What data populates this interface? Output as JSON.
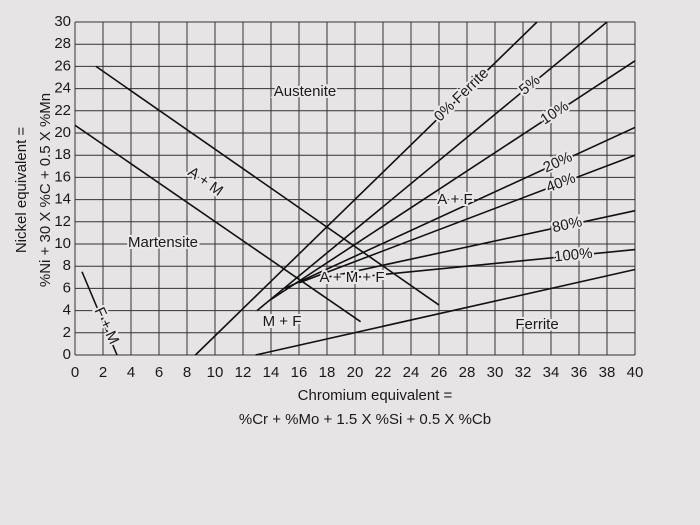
{
  "chart_data": {
    "type": "line",
    "y_label": [
      "Nickel equivalent =",
      "%Ni + 30 X %C + 0.5 X %Mn"
    ],
    "x_label": [
      "Chromium equivalent =",
      "%Cr + %Mo + 1.5 X %Si + 0.5 X %Cb"
    ],
    "xlim": [
      0,
      40
    ],
    "ylim": [
      0,
      30
    ],
    "xticks": [
      0,
      2,
      4,
      6,
      8,
      10,
      12,
      14,
      16,
      18,
      20,
      22,
      24,
      26,
      28,
      30,
      32,
      34,
      36,
      38,
      40
    ],
    "yticks": [
      0,
      2,
      4,
      6,
      8,
      10,
      12,
      14,
      16,
      18,
      20,
      22,
      24,
      26,
      28,
      30
    ],
    "grid": true,
    "color": "#111111",
    "regions": [
      "Austenite",
      "A + M",
      "Martensite",
      "A + M + F",
      "A + F",
      "M + F",
      "Ferrite",
      "F + M"
    ],
    "series": [
      {
        "name": "0% Ferrite",
        "x": [
          8.6,
          33
        ],
        "values": [
          0,
          30
        ]
      },
      {
        "name": "5%",
        "x": [
          13,
          38
        ],
        "values": [
          4,
          30
        ]
      },
      {
        "name": "10%",
        "x": [
          14,
          40
        ],
        "values": [
          5,
          26.5
        ]
      },
      {
        "name": "20%",
        "x": [
          15,
          40
        ],
        "values": [
          6,
          20.5
        ]
      },
      {
        "name": "40%",
        "x": [
          16,
          40
        ],
        "values": [
          6.5,
          18
        ]
      },
      {
        "name": "80%",
        "x": [
          18,
          40
        ],
        "values": [
          7,
          13
        ]
      },
      {
        "name": "100%",
        "x": [
          20,
          40
        ],
        "values": [
          7,
          9.5
        ]
      },
      {
        "x": [
          1.5,
          26
        ],
        "values": [
          26,
          4.5
        ]
      },
      {
        "x": [
          0,
          20.4
        ],
        "values": [
          20.7,
          3
        ]
      },
      {
        "x": [
          12.9,
          40
        ],
        "values": [
          0,
          7.7
        ]
      },
      {
        "x": [
          0.5,
          3
        ],
        "values": [
          7.5,
          0
        ]
      }
    ]
  }
}
